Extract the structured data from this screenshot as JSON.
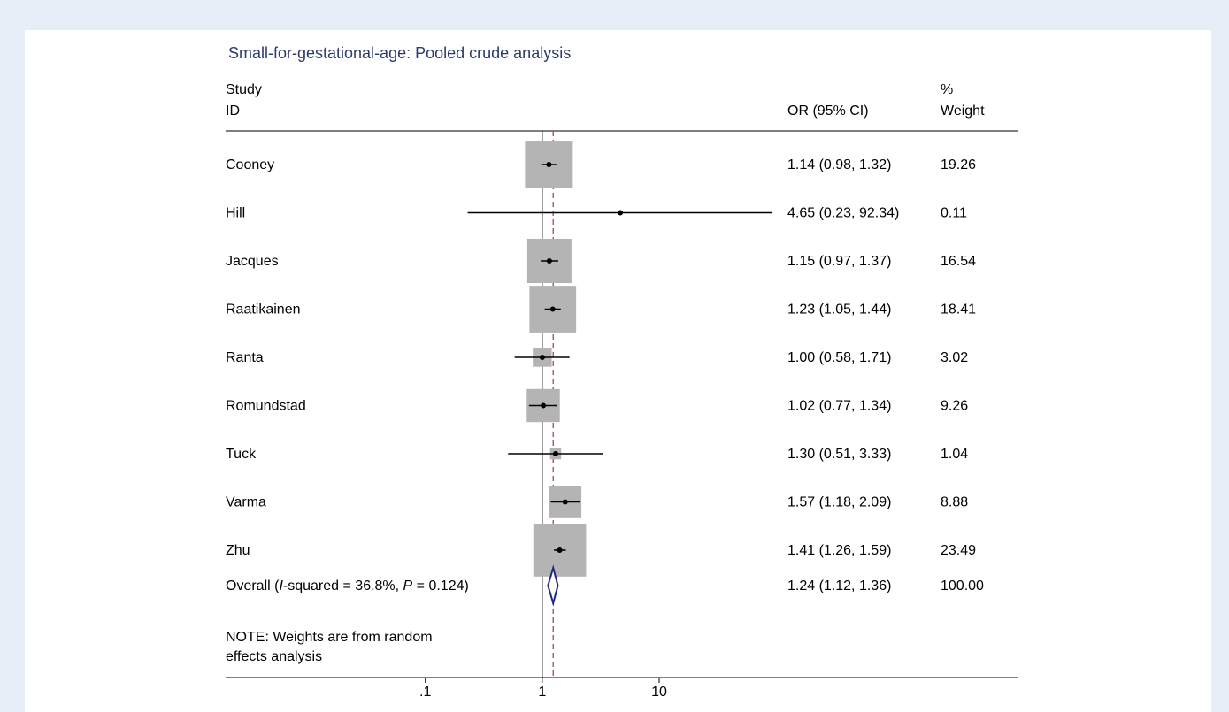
{
  "chart_data": {
    "type": "forest",
    "title": "Small-for-gestational-age:  Pooled crude analysis",
    "columns": {
      "study_line1": "Study",
      "study_line2": "ID",
      "or": "OR (95% CI)",
      "weight_line1": "%",
      "weight_line2": "Weight"
    },
    "x_scale": "log",
    "xlim": [
      0.0108,
      93
    ],
    "x_ticks": [
      {
        "value": 0.1,
        "label": ".1"
      },
      {
        "value": 1,
        "label": "1"
      },
      {
        "value": 10,
        "label": "10"
      }
    ],
    "null_line": 1,
    "pooled_line": 1.24,
    "studies": [
      {
        "name": "Cooney",
        "or": 1.14,
        "lo": 0.98,
        "hi": 1.32,
        "ci_text": "1.14 (0.98, 1.32)",
        "weight": 19.26,
        "weight_text": "19.26"
      },
      {
        "name": "Hill",
        "or": 4.65,
        "lo": 0.23,
        "hi": 92.34,
        "ci_text": "4.65 (0.23, 92.34)",
        "weight": 0.11,
        "weight_text": "0.11"
      },
      {
        "name": "Jacques",
        "or": 1.15,
        "lo": 0.97,
        "hi": 1.37,
        "ci_text": "1.15 (0.97, 1.37)",
        "weight": 16.54,
        "weight_text": "16.54"
      },
      {
        "name": "Raatikainen",
        "or": 1.23,
        "lo": 1.05,
        "hi": 1.44,
        "ci_text": "1.23 (1.05, 1.44)",
        "weight": 18.41,
        "weight_text": "18.41"
      },
      {
        "name": "Ranta",
        "or": 1.0,
        "lo": 0.58,
        "hi": 1.71,
        "ci_text": "1.00 (0.58, 1.71)",
        "weight": 3.02,
        "weight_text": "3.02"
      },
      {
        "name": "Romundstad",
        "or": 1.02,
        "lo": 0.77,
        "hi": 1.34,
        "ci_text": "1.02 (0.77, 1.34)",
        "weight": 9.26,
        "weight_text": "9.26"
      },
      {
        "name": "Tuck",
        "or": 1.3,
        "lo": 0.51,
        "hi": 3.33,
        "ci_text": "1.30 (0.51, 3.33)",
        "weight": 1.04,
        "weight_text": "1.04"
      },
      {
        "name": "Varma",
        "or": 1.57,
        "lo": 1.18,
        "hi": 2.09,
        "ci_text": "1.57 (1.18, 2.09)",
        "weight": 8.88,
        "weight_text": "8.88"
      },
      {
        "name": "Zhu",
        "or": 1.41,
        "lo": 1.26,
        "hi": 1.59,
        "ci_text": "1.41 (1.26, 1.59)",
        "weight": 23.49,
        "weight_text": "23.49"
      }
    ],
    "overall": {
      "label_prefix": "Overall  (",
      "label_i": "I",
      "label_mid": "-squared = 36.8%, ",
      "label_p": "P",
      "label_suffix": " = 0.124)",
      "or": 1.24,
      "lo": 1.12,
      "hi": 1.36,
      "ci_text": "1.24 (1.12, 1.36)",
      "weight_text": "100.00"
    },
    "note": [
      "NOTE: Weights are from random",
      "effects analysis"
    ],
    "colors": {
      "title": "#2b3a6b",
      "box": "#b4b4b4",
      "line": "#000000",
      "diamond": "#1f2a80",
      "pooled_line": "#b04060",
      "text": "#000000",
      "page_background": "#e8eef8",
      "panel_background": "#ffffff"
    }
  }
}
